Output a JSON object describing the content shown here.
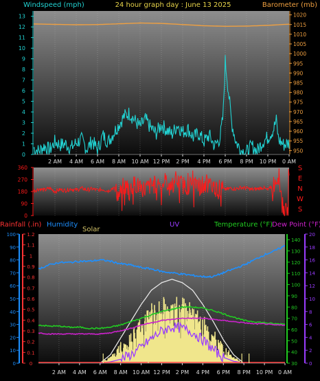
{
  "header": {
    "left_label": "Windspeed (mph)",
    "center_label": "24 hour graph day : June 13 2025",
    "right_label": "Barometer (mb)"
  },
  "x_ticks": [
    "2 AM",
    "4 AM",
    "6 AM",
    "8 AM",
    "10 AM",
    "12 PM",
    "2 PM",
    "4 PM",
    "6 PM",
    "8 PM",
    "10 PM",
    "0 AM"
  ],
  "colors": {
    "wind": "#22d3d3",
    "barometer": "#f0a040",
    "wind_dir": "#ff1a1a",
    "humidity": "#1e90ff",
    "temperature": "#22cc22",
    "dew_point": "#cc22cc",
    "uv": "#9a3cff",
    "solar": "#f0e68c",
    "rain": "#ff3333",
    "rain_axis": "#ff3333",
    "humidity_axis": "#1e90ff",
    "temp_axis": "#22cc22",
    "uv_axis": "#9a3cff"
  },
  "chart_data": [
    {
      "type": "line",
      "name": "wind-barometer",
      "left_axis": {
        "label": "Windspeed (mph)",
        "ticks": [
          0,
          1,
          2,
          3,
          4,
          5,
          6,
          7,
          8,
          9,
          10,
          11,
          12,
          13
        ],
        "range": [
          0,
          13.5
        ]
      },
      "right_axis": {
        "label": "Barometer (mb)",
        "ticks": [
          950,
          955,
          960,
          965,
          970,
          975,
          980,
          985,
          990,
          995,
          1000,
          1005,
          1010,
          1015,
          1020
        ],
        "range": [
          948,
          1022
        ]
      },
      "x_range_hours": [
        0,
        24
      ],
      "series": [
        {
          "name": "Windspeed (mph)",
          "x": [
            0,
            0.5,
            1,
            1.5,
            2,
            2.5,
            3,
            3.5,
            4,
            4.5,
            5,
            5.5,
            6,
            6.5,
            7,
            7.5,
            8,
            8.5,
            9,
            9.5,
            10,
            10.5,
            11,
            11.5,
            12,
            12.5,
            13,
            13.5,
            14,
            14.5,
            15,
            15.5,
            16,
            16.5,
            17,
            17.5,
            17.8,
            18,
            18.3,
            18.6,
            19,
            19.5,
            20,
            20.5,
            21,
            21.5,
            22,
            22.5,
            22.8,
            23,
            23.5,
            24
          ],
          "y": [
            0.6,
            0.3,
            0.8,
            0.4,
            1.2,
            0.9,
            1.0,
            0.6,
            1.1,
            1.4,
            0.5,
            1.3,
            0.4,
            1.8,
            1.2,
            2.0,
            2.8,
            3.6,
            3.9,
            3.2,
            2.6,
            3.3,
            2.5,
            2.0,
            2.8,
            2.3,
            1.9,
            2.8,
            2.1,
            2.4,
            1.6,
            2.0,
            1.2,
            1.8,
            0.8,
            1.5,
            3.6,
            8.8,
            6.0,
            3.0,
            1.2,
            0.4,
            0.2,
            0.8,
            0.3,
            1.2,
            1.6,
            2.3,
            3.2,
            1.4,
            0.9,
            1.1
          ]
        },
        {
          "name": "Barometer (mb)",
          "x": [
            0,
            2,
            4,
            6,
            8,
            10,
            12,
            14,
            16,
            18,
            20,
            22,
            24
          ],
          "y": [
            1015.3,
            1015.1,
            1014.9,
            1015.0,
            1015.4,
            1015.8,
            1015.6,
            1015.0,
            1014.4,
            1014.1,
            1014.2,
            1014.6,
            1015.2
          ]
        }
      ]
    },
    {
      "type": "line",
      "name": "wind-direction",
      "left_axis": {
        "ticks": [
          0,
          90,
          180,
          270,
          360
        ],
        "range": [
          0,
          360
        ]
      },
      "right_labels": [
        "S",
        "E",
        "N",
        "W",
        "S"
      ],
      "series": [
        {
          "name": "Wind Direction",
          "x": [
            0,
            0.5,
            1,
            1.5,
            2,
            2.5,
            3,
            3.5,
            4,
            4.5,
            5,
            5.5,
            6,
            6.5,
            7,
            7.5,
            8,
            8.5,
            9,
            9.5,
            10,
            10.5,
            11,
            11.5,
            12,
            12.5,
            13,
            13.5,
            14,
            14.5,
            15,
            15.5,
            16,
            16.5,
            17,
            17.5,
            18,
            18.5,
            19,
            19.5,
            20,
            20.5,
            21,
            21.5,
            22,
            22.5,
            23,
            23.5,
            24
          ],
          "y": [
            185,
            200,
            190,
            205,
            180,
            195,
            188,
            200,
            190,
            205,
            192,
            200,
            190,
            196,
            185,
            210,
            150,
            230,
            190,
            240,
            210,
            200,
            225,
            235,
            240,
            245,
            235,
            250,
            230,
            220,
            240,
            230,
            215,
            225,
            210,
            200,
            195,
            205,
            200,
            210,
            205,
            195,
            200,
            210,
            190,
            230,
            300,
            30,
            15
          ]
        }
      ]
    },
    {
      "type": "line",
      "name": "temp-humidity-solar",
      "axes": {
        "rainfall": {
          "label": "Rainfall (.in)",
          "ticks": [
            0,
            0.1,
            0.2,
            0.3,
            0.4,
            0.5,
            0.6,
            0.7,
            0.8,
            0.9,
            1,
            1.1,
            1.2
          ],
          "range": [
            0,
            1.2
          ]
        },
        "humidity": {
          "label": "Humidity",
          "ticks": [
            0,
            10,
            20,
            30,
            40,
            50,
            60,
            70,
            80,
            90,
            100
          ],
          "range": [
            0,
            100
          ]
        },
        "temperature": {
          "label": "Temperature (°F)",
          "ticks": [
            30,
            40,
            50,
            60,
            70,
            80,
            90,
            100,
            110,
            120,
            130,
            140
          ],
          "range": [
            30,
            145
          ]
        },
        "uv": {
          "label": "UV",
          "ticks": [
            0,
            2,
            4,
            6,
            8,
            10,
            12,
            14,
            16,
            18,
            20
          ],
          "range": [
            0,
            20
          ]
        }
      },
      "labels": {
        "rainfall": "Rainfall (.in)",
        "humidity": "Humidity",
        "solar": "Solar",
        "uv": "UV",
        "temperature": "Temperature (°F)",
        "dew_point": "Dew Point (°F)"
      },
      "series": [
        {
          "name": "Humidity",
          "x": [
            0,
            1,
            2,
            3,
            4,
            5,
            6,
            7,
            8,
            9,
            10,
            11,
            12,
            13,
            14,
            15,
            16,
            17,
            18,
            19,
            20,
            21,
            22,
            23,
            24
          ],
          "y": [
            73,
            76,
            78,
            78,
            79,
            79,
            80,
            79,
            77,
            76,
            74,
            73,
            71,
            70,
            69,
            68,
            67,
            67,
            70,
            73,
            76,
            80,
            84,
            87,
            91
          ]
        },
        {
          "name": "Temperature",
          "x": [
            0,
            1,
            2,
            3,
            4,
            5,
            6,
            7,
            8,
            9,
            10,
            11,
            12,
            13,
            14,
            15,
            16,
            17,
            18,
            19,
            20,
            21,
            22,
            23,
            24
          ],
          "y": [
            64,
            63,
            63,
            62,
            62,
            61,
            61,
            62,
            64,
            67,
            70,
            73,
            76,
            78,
            80,
            80,
            79,
            77,
            74,
            71,
            68,
            67,
            66,
            65,
            65
          ]
        },
        {
          "name": "Dew Point",
          "x": [
            0,
            1,
            2,
            3,
            4,
            5,
            6,
            7,
            8,
            9,
            10,
            11,
            12,
            13,
            14,
            15,
            16,
            17,
            18,
            19,
            20,
            21,
            22,
            23,
            24
          ],
          "y": [
            57,
            56,
            56,
            56,
            56,
            56,
            56,
            57,
            59,
            61,
            64,
            66,
            68,
            69,
            70,
            70,
            70,
            69,
            68,
            67,
            66,
            65,
            65,
            64,
            64
          ]
        },
        {
          "name": "Solar Clear Sky",
          "x": [
            6,
            7,
            8,
            9,
            10,
            11,
            12,
            13,
            14,
            15,
            16,
            17,
            18,
            19,
            20
          ],
          "y": [
            0,
            0.1,
            0.3,
            0.5,
            0.7,
            0.87,
            0.96,
            1.0,
            0.96,
            0.87,
            0.7,
            0.5,
            0.28,
            0.1,
            0
          ]
        },
        {
          "name": "UV",
          "x": [
            6,
            7,
            8,
            9,
            10,
            11,
            12,
            13,
            14,
            15,
            16,
            17,
            18,
            19,
            20
          ],
          "y": [
            0,
            0.2,
            0.6,
            1.3,
            2.4,
            3.8,
            5.0,
            5.6,
            5.4,
            4.8,
            3.6,
            2.1,
            0.9,
            0.3,
            0
          ]
        }
      ]
    }
  ]
}
